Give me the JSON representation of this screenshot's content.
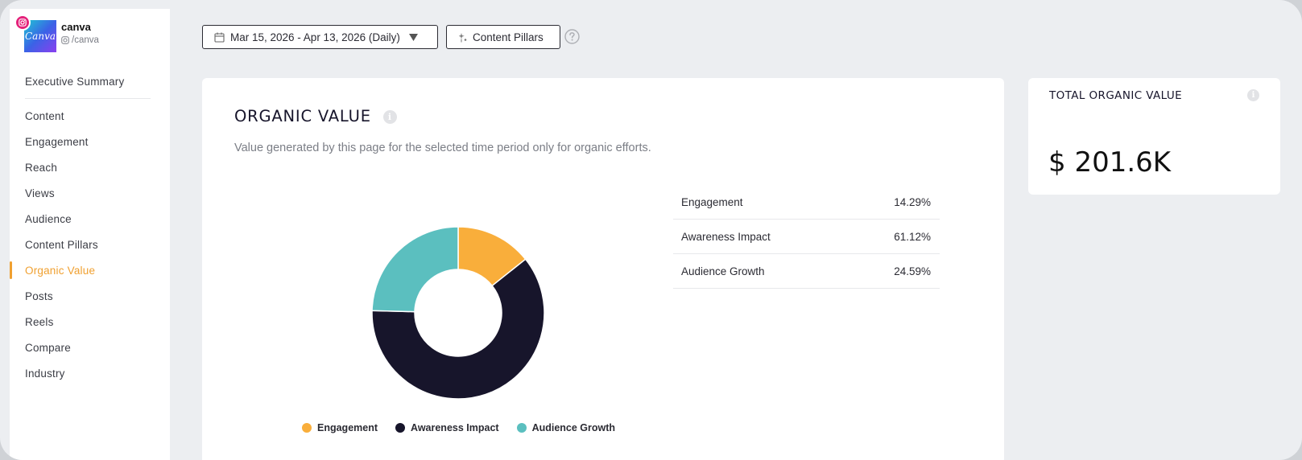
{
  "profile": {
    "name": "canva",
    "handle": "/canva",
    "avatar_text": "Canva"
  },
  "sidebar": {
    "items": [
      {
        "label": "Executive Summary"
      },
      {
        "label": "Content"
      },
      {
        "label": "Engagement"
      },
      {
        "label": "Reach"
      },
      {
        "label": "Views"
      },
      {
        "label": "Audience"
      },
      {
        "label": "Content Pillars"
      },
      {
        "label": "Organic Value"
      },
      {
        "label": "Posts"
      },
      {
        "label": "Reels"
      },
      {
        "label": "Compare"
      },
      {
        "label": "Industry"
      }
    ],
    "active_item": "Organic Value"
  },
  "toolbar": {
    "date_range": "Mar 15, 2026 - Apr 13, 2026 (Daily)",
    "content_pillars_label": "Content Pillars"
  },
  "organic_value": {
    "title": "ORGANIC VALUE",
    "subtitle": "Value generated by this page for the selected time period only for organic efforts.",
    "rows": [
      {
        "label": "Engagement",
        "value": "14.29%"
      },
      {
        "label": "Awareness Impact",
        "value": "61.12%"
      },
      {
        "label": "Audience Growth",
        "value": "24.59%"
      }
    ]
  },
  "total": {
    "label": "TOTAL ORGANIC VALUE",
    "value": "$ 201.6K"
  },
  "colors": {
    "accent": "#f0a030",
    "engagement": "#f9ae3b",
    "awareness": "#17152b",
    "audience_growth": "#5bbfbf"
  },
  "chart_data": {
    "type": "pie",
    "categories": [
      "Engagement",
      "Awareness Impact",
      "Audience Growth"
    ],
    "values": [
      14.29,
      61.12,
      24.59
    ],
    "colors": [
      "#f9ae3b",
      "#17152b",
      "#5bbfbf"
    ],
    "legend": "bottom",
    "donut": true
  }
}
